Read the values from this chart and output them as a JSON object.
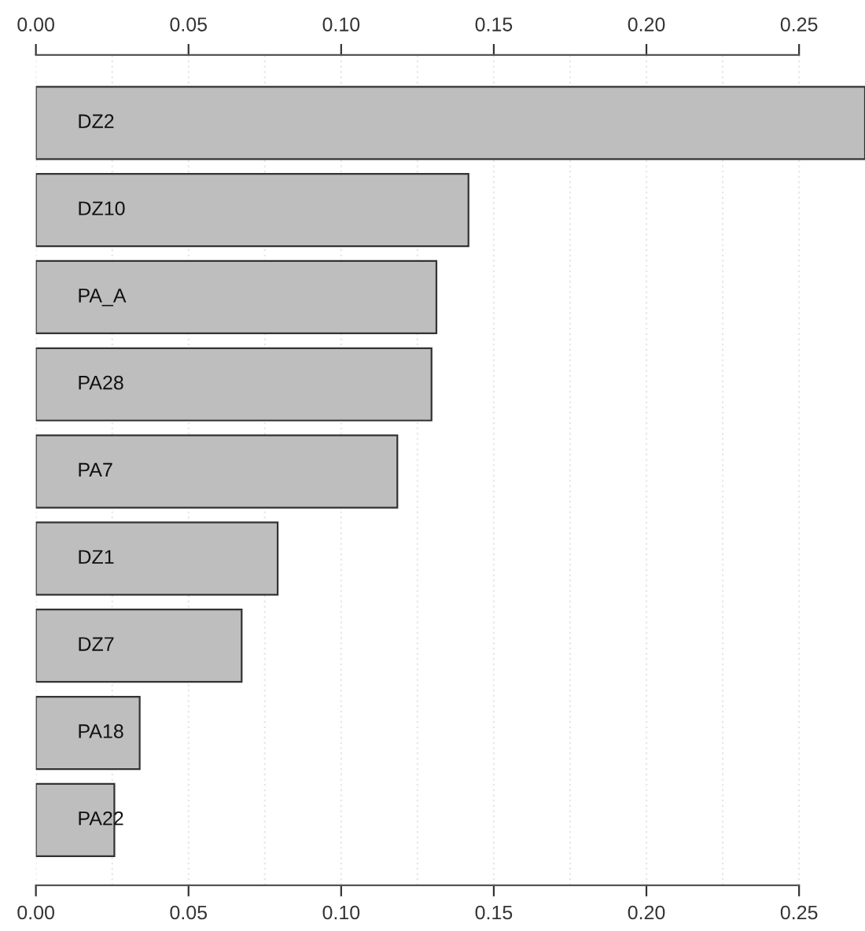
{
  "chart_data": {
    "type": "bar",
    "orientation": "horizontal",
    "categories": [
      "DZ2",
      "DZ10",
      "PA_A",
      "PA28",
      "PA7",
      "DZ1",
      "DZ7",
      "PA18",
      "PA22"
    ],
    "values": [
      0.2716,
      0.1417,
      0.1312,
      0.1296,
      0.1184,
      0.0792,
      0.0674,
      0.034,
      0.0257
    ],
    "color": "#bebebe",
    "xlim": [
      0,
      0.2716
    ],
    "x2lim": [
      0,
      0.2716
    ],
    "x2ticks": [
      {
        "value": 0,
        "label": "0.00"
      },
      0.05,
      {
        "value": 0.1,
        "label": "0.10"
      },
      0.15,
      {
        "value": 0.2,
        "label": "0.20"
      },
      0.25
    ],
    "xticks": [
      {
        "value": 0,
        "label": "0.00"
      },
      0.05,
      {
        "value": 0.1,
        "label": "0.10"
      },
      0.15,
      {
        "value": 0.2,
        "label": "0.20"
      },
      0.25
    ],
    "grid": "x"
  }
}
